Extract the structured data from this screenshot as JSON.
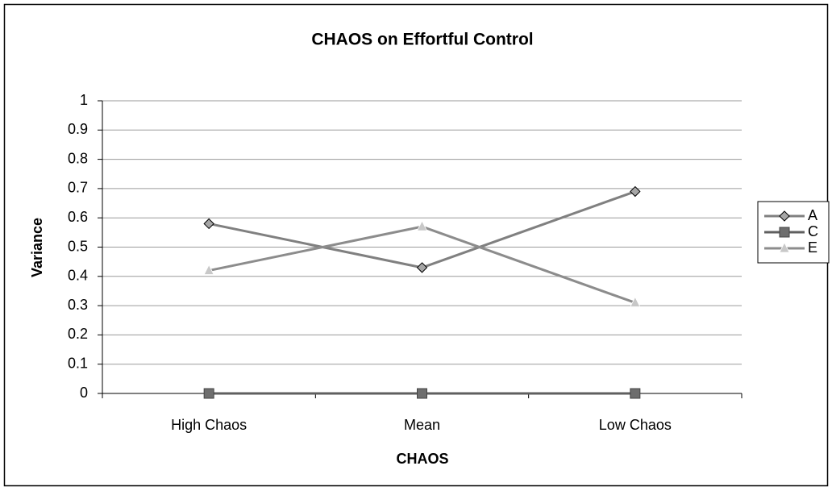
{
  "chart_data": {
    "type": "line",
    "title": "CHAOS on Effortful Control",
    "x_label": "CHAOS",
    "y_label": "Variance",
    "categories": [
      "High Chaos",
      "Mean",
      "Low Chaos"
    ],
    "series": [
      {
        "name": "A",
        "color": "#808080",
        "marker": "diamond",
        "marker_color": "#a6a6a6",
        "values": [
          0.58,
          0.43,
          0.69
        ]
      },
      {
        "name": "C",
        "color": "#5f5f5f",
        "marker": "square",
        "marker_color": "#6e6e6e",
        "values": [
          0,
          0,
          0
        ]
      },
      {
        "name": "E",
        "color": "#8c8c8c",
        "marker": "triangle",
        "marker_color": "#c8c8c8",
        "values": [
          0.42,
          0.57,
          0.31
        ]
      }
    ],
    "ylim": [
      0,
      1
    ],
    "yticks": [
      0,
      0.1,
      0.2,
      0.3,
      0.4,
      0.5,
      0.6,
      0.7,
      0.8,
      0.9,
      1
    ],
    "grid": true,
    "legend": "right"
  }
}
